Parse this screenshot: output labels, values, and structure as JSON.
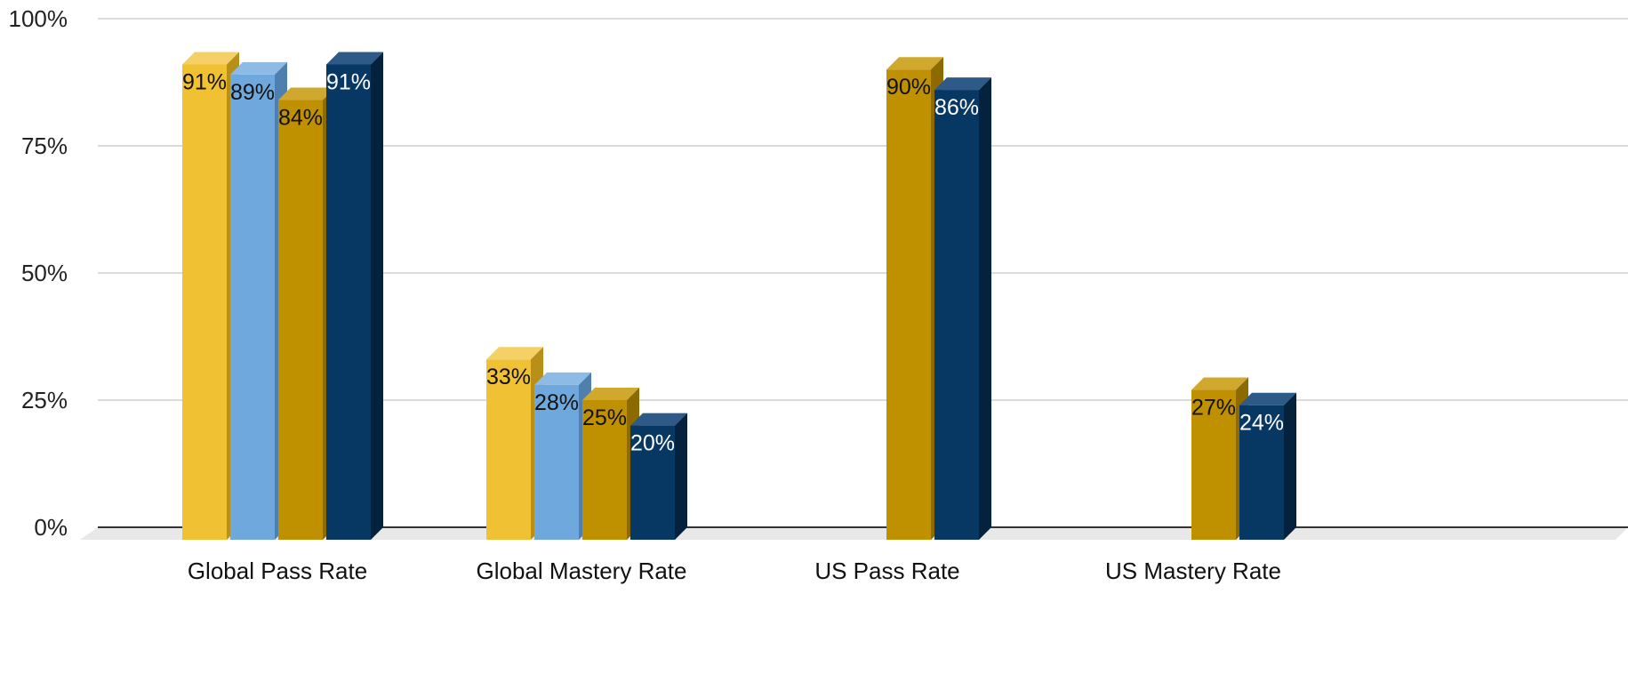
{
  "chart_data": {
    "type": "bar",
    "style": "3d-clustered-column",
    "categories": [
      "Global Pass Rate",
      "Global Mastery Rate",
      "US Pass Rate",
      "US Mastery Rate"
    ],
    "series": [
      {
        "color": "#f0c132",
        "top_color": "#f4d066",
        "side_color": "#b88f17",
        "label_color": "#111111",
        "values": [
          0.91,
          0.33,
          null,
          null
        ],
        "labels": [
          "91%",
          "33%",
          "",
          ""
        ]
      },
      {
        "color": "#6fa8dc",
        "top_color": "#8dbbe6",
        "side_color": "#4f7fae",
        "label_color": "#111111",
        "values": [
          0.89,
          0.28,
          null,
          null
        ],
        "labels": [
          "89%",
          "28%",
          "",
          ""
        ]
      },
      {
        "color": "#bf9000",
        "top_color": "#d0a82e",
        "side_color": "#8c6a00",
        "label_color": "#111111",
        "values": [
          0.84,
          0.25,
          0.9,
          0.27
        ],
        "labels": [
          "84%",
          "25%",
          "90%",
          "27%"
        ]
      },
      {
        "color": "#073763",
        "top_color": "#2d5a86",
        "side_color": "#04223d",
        "label_color": "#ffffff",
        "values": [
          0.91,
          0.2,
          0.86,
          0.24
        ],
        "labels": [
          "91%",
          "20%",
          "86%",
          "24%"
        ]
      }
    ],
    "y_ticks": [
      {
        "value": 0,
        "label": "0%"
      },
      {
        "value": 0.25,
        "label": "25%"
      },
      {
        "value": 0.5,
        "label": "50%"
      },
      {
        "value": 0.75,
        "label": "75%"
      },
      {
        "value": 1.0,
        "label": "100%"
      }
    ],
    "ylim": [
      0,
      1
    ],
    "grid": true,
    "legend": "none"
  }
}
